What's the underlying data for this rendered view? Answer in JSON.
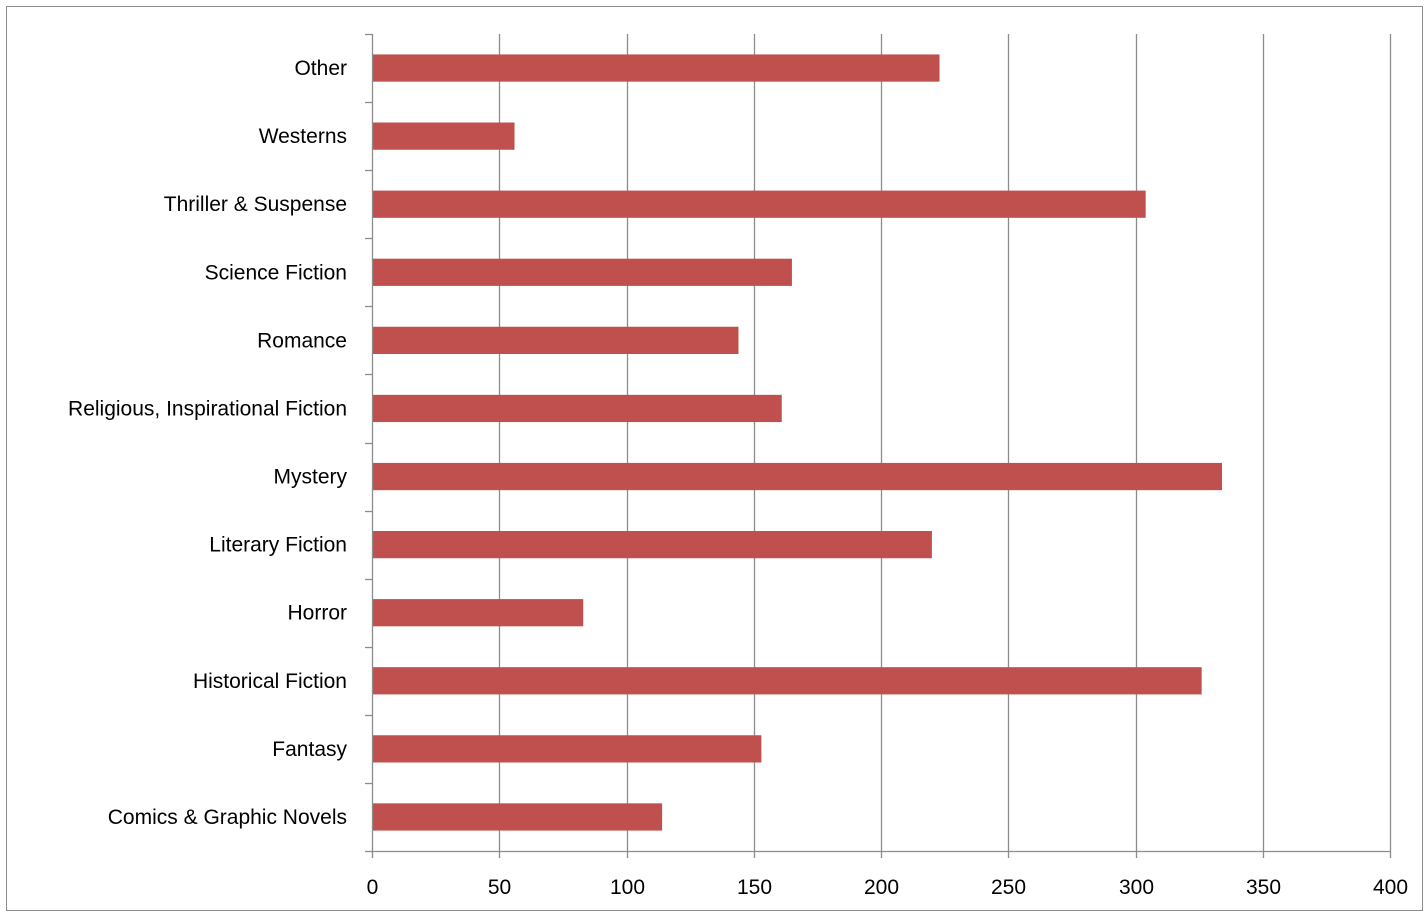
{
  "chart_data": {
    "type": "bar",
    "orientation": "horizontal",
    "categories": [
      "Comics & Graphic Novels",
      "Fantasy",
      "Historical Fiction",
      "Horror",
      "Literary Fiction",
      "Mystery",
      "Religious, Inspirational Fiction",
      "Romance",
      "Science Fiction",
      "Thriller & Suspense",
      "Westerns",
      "Other"
    ],
    "series": [
      {
        "values": [
          114,
          153,
          326,
          83,
          220,
          334,
          161,
          144,
          165,
          304,
          56,
          223
        ]
      }
    ],
    "xlim": [
      0,
      400
    ],
    "xticks": [
      "0",
      "50",
      "100",
      "150",
      "200",
      "250",
      "300",
      "350",
      "400"
    ],
    "grid": true,
    "legend": "none",
    "title": "",
    "xlabel": "",
    "ylabel": ""
  },
  "colors": {
    "bar": "#c0504d",
    "grid": "#8c8c8c",
    "axis": "#8c8c8c",
    "frame": "#8c8c8c"
  }
}
